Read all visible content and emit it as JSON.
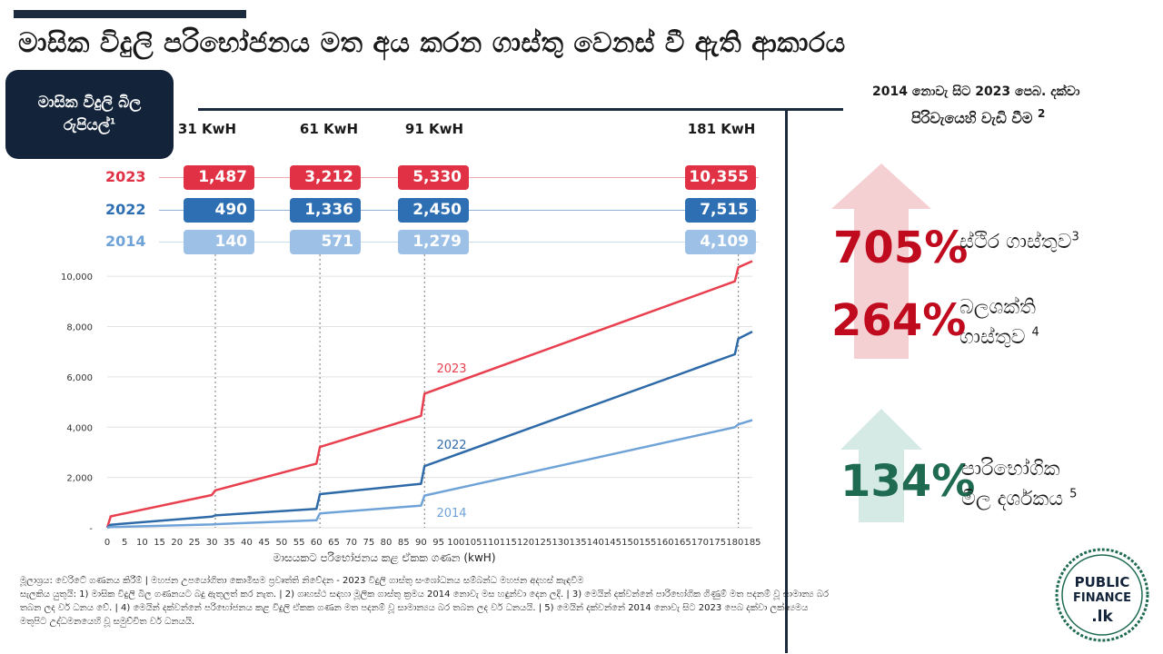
{
  "title": "මාසික විදුලි පරිභෝජනය මත අය කරන ගාස්තු වෙනස් වී ඇති ආකාරය",
  "bill_box": {
    "line1": "මාසික විදුලි බිල",
    "line2": "රුපියල්",
    "note": "1"
  },
  "kwh_headers": [
    "31 KwH",
    "61 KwH",
    "91 KwH",
    "181 KwH"
  ],
  "bill_table": {
    "years": [
      "2023",
      "2022",
      "2014"
    ],
    "rows": [
      {
        "year": "2023",
        "color": "#e03244",
        "values": [
          "1,487",
          "3,212",
          "5,330",
          "10,355"
        ]
      },
      {
        "year": "2022",
        "color": "#2e6fb3",
        "values": [
          "490",
          "1,336",
          "2,450",
          "7,515"
        ]
      },
      {
        "year": "2014",
        "color": "#9dc0e6",
        "values": [
          "140",
          "571",
          "1,279",
          "4,109"
        ]
      }
    ]
  },
  "right_panel": {
    "title_line1": "2014 නොවැ සිට 2023 පෙබ. දක්වා",
    "title_line2": "පිරිවැයෙහි වැඩි වීම",
    "title_note": "2",
    "stats": [
      {
        "value": "705%",
        "label_line1": "ස්ථිර ගාස්තුව",
        "label_line2": "",
        "note": "3",
        "color": "#c00a1e"
      },
      {
        "value": "264%",
        "label_line1": "බලශක්ති",
        "label_line2": "ගාස්තුව",
        "note": "4",
        "color": "#c00a1e"
      },
      {
        "value": "134%",
        "label_line1": "පාරිභෝගික",
        "label_line2": "මිල දර්ශකය",
        "note": "5",
        "color": "#1f6b52"
      }
    ]
  },
  "chart_data": {
    "type": "line",
    "xlabel": "මාසයකට පරිභෝජනය කළ ඒකක ගණන  (kwH)",
    "ylabel": "",
    "xlim": [
      0,
      185
    ],
    "ylim": [
      0,
      10800
    ],
    "x_ticks": [
      0,
      5,
      10,
      15,
      20,
      25,
      30,
      35,
      40,
      45,
      50,
      55,
      60,
      65,
      70,
      75,
      80,
      85,
      90,
      95,
      100,
      105,
      110,
      115,
      120,
      125,
      130,
      135,
      140,
      145,
      150,
      155,
      160,
      165,
      170,
      175,
      180,
      185
    ],
    "y_ticks": [
      0,
      2000,
      4000,
      6000,
      8000,
      10000
    ],
    "y_tick_labels": [
      "-",
      "2,000",
      "4,000",
      "6,000",
      "8,000",
      "10,000"
    ],
    "markers_x": [
      31,
      61,
      91,
      181
    ],
    "series": [
      {
        "name": "2023",
        "color": "#e8404f",
        "points": [
          [
            0,
            0
          ],
          [
            1,
            450
          ],
          [
            30,
            1300
          ],
          [
            31,
            1487
          ],
          [
            60,
            2550
          ],
          [
            61,
            3212
          ],
          [
            90,
            4450
          ],
          [
            91,
            5330
          ],
          [
            180,
            9800
          ],
          [
            181,
            10355
          ],
          [
            185,
            10600
          ]
        ]
      },
      {
        "name": "2022",
        "color": "#2e6aa8",
        "points": [
          [
            0,
            0
          ],
          [
            1,
            120
          ],
          [
            30,
            440
          ],
          [
            31,
            490
          ],
          [
            60,
            750
          ],
          [
            61,
            1336
          ],
          [
            90,
            1750
          ],
          [
            91,
            2450
          ],
          [
            180,
            6900
          ],
          [
            181,
            7515
          ],
          [
            185,
            7800
          ]
        ]
      },
      {
        "name": "2014",
        "color": "#6fa3d8",
        "points": [
          [
            0,
            0
          ],
          [
            1,
            30
          ],
          [
            30,
            130
          ],
          [
            31,
            140
          ],
          [
            60,
            300
          ],
          [
            61,
            571
          ],
          [
            90,
            880
          ],
          [
            91,
            1279
          ],
          [
            180,
            4000
          ],
          [
            181,
            4109
          ],
          [
            185,
            4280
          ]
        ]
      }
    ]
  },
  "footnotes": [
    "මූලාශ්‍රය: වෙරිටේ ගණනය කිරීම් | මහජන උපයෝගිතා කොමිසම ප්‍රවෘත්ති නිවේදන - 2023 විදුලි ගාස්තු සංශෝධනය සම්බන්ධ මහජන අදහස් කැඳවීම",
    "සැලකිය යුතුයි: 1) මාසික විදුලි බිල ගණනයට බදු ඇතුලත් කර නැත. | 2) ගෘහස්ථ සඳහා මූලික ගාස්තු ක්‍රමය 2014 නොවැ මස හඳුන්වා දෙන ලදි. | 3) මෙයින් දක්වන්නේ පාරිභෝගික ගිණුම් මත පදනම් වූ සාමාන්‍ය බර",
    "තබන ලද වර් ධනය වේ. | 4) මෙයින් දක්වන්නේ පරිභෝජනය කළ විදුලි ඒකක ගණන මත පදනම් වූ සාමාන්‍යය බර තබන ලද වර් ධනයයි. | 5) මෙයින් දක්වන්නේ 2014 නොවැ සිට 2023 පෙබ දක්වා ලක්ෂ්‍යමය",
    "මතුපිට උද්ධමනයෙහි වූ සමුච්චිත වර් ධනයයි."
  ],
  "logo": {
    "line1": "PUBLIC",
    "line2": "FINANCE",
    "line3": ".lk"
  }
}
